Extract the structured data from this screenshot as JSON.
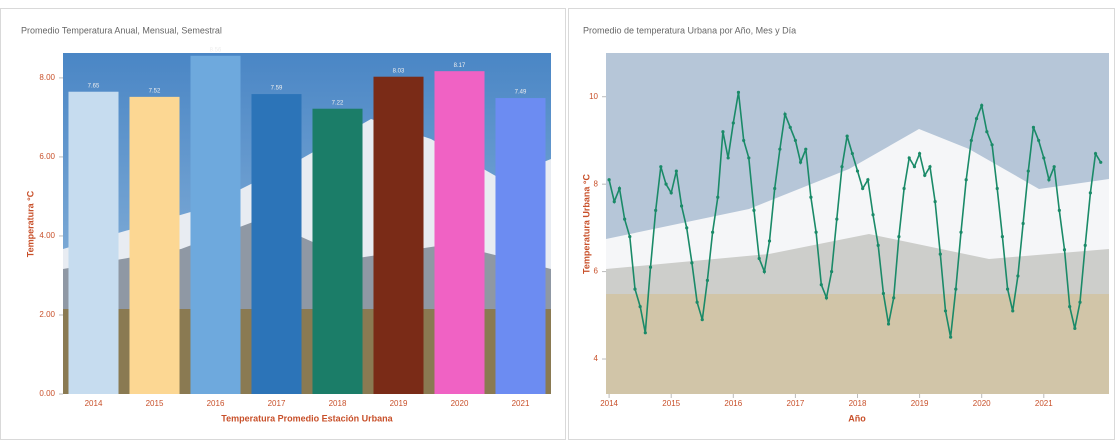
{
  "chart_data": [
    {
      "type": "bar",
      "title": "Promedio Temperatura Anual, Mensual, Semestral",
      "x_label": "Temperatura Promedio Estación Urbana",
      "y_label": "Temperatura °C",
      "categories": [
        "2014",
        "2015",
        "2016",
        "2017",
        "2018",
        "2019",
        "2020",
        "2021"
      ],
      "values": [
        7.65,
        7.52,
        8.56,
        7.59,
        7.22,
        8.03,
        8.17,
        7.49
      ],
      "colors": [
        "#c6dcef",
        "#fcd793",
        "#6ea9dd",
        "#2c74b8",
        "#1b7d68",
        "#7a2b17",
        "#f062c4",
        "#6c8cf2"
      ],
      "ylim": [
        0,
        8.63
      ],
      "yticks": [
        {
          "value": 0,
          "label": "0.00"
        },
        {
          "value": 2,
          "label": "2.00"
        },
        {
          "value": 4,
          "label": "4.00"
        },
        {
          "value": 6,
          "label": "6.00"
        },
        {
          "value": 8,
          "label": "8.00"
        }
      ]
    },
    {
      "type": "line",
      "title": "Promedio de temperatura Urbana por Año, Mes y Día",
      "x_label": "Año",
      "y_label": "Temperatura Urbana °C",
      "color": "#1a8a68",
      "x": [
        2014.0,
        2014.083,
        2014.167,
        2014.25,
        2014.333,
        2014.417,
        2014.5,
        2014.583,
        2014.667,
        2014.75,
        2014.833,
        2014.917,
        2015.0,
        2015.083,
        2015.167,
        2015.25,
        2015.333,
        2015.417,
        2015.5,
        2015.583,
        2015.667,
        2015.75,
        2015.833,
        2015.917,
        2016.0,
        2016.083,
        2016.167,
        2016.25,
        2016.333,
        2016.417,
        2016.5,
        2016.583,
        2016.667,
        2016.75,
        2016.833,
        2016.917,
        2017.0,
        2017.083,
        2017.167,
        2017.25,
        2017.333,
        2017.417,
        2017.5,
        2017.583,
        2017.667,
        2017.75,
        2017.833,
        2017.917,
        2018.0,
        2018.083,
        2018.167,
        2018.25,
        2018.333,
        2018.417,
        2018.5,
        2018.583,
        2018.667,
        2018.75,
        2018.833,
        2018.917,
        2019.0,
        2019.083,
        2019.167,
        2019.25,
        2019.333,
        2019.417,
        2019.5,
        2019.583,
        2019.667,
        2019.75,
        2019.833,
        2019.917,
        2020.0,
        2020.083,
        2020.167,
        2020.25,
        2020.333,
        2020.417,
        2020.5,
        2020.583,
        2020.667,
        2020.75,
        2020.833,
        2020.917,
        2021.0,
        2021.083,
        2021.167,
        2021.25,
        2021.333,
        2021.417,
        2021.5,
        2021.583,
        2021.667,
        2021.75,
        2021.833,
        2021.917
      ],
      "values": [
        8.1,
        7.6,
        7.9,
        7.2,
        6.8,
        5.6,
        5.2,
        4.6,
        6.1,
        7.4,
        8.4,
        8.0,
        7.8,
        8.3,
        7.5,
        7.0,
        6.2,
        5.3,
        4.9,
        5.8,
        6.9,
        7.7,
        9.2,
        8.6,
        9.4,
        10.1,
        9.0,
        8.6,
        7.4,
        6.3,
        6.0,
        6.7,
        7.9,
        8.8,
        9.6,
        9.3,
        9.0,
        8.5,
        8.8,
        7.7,
        6.9,
        5.7,
        5.4,
        6.0,
        7.2,
        8.4,
        9.1,
        8.7,
        8.3,
        7.9,
        8.1,
        7.3,
        6.6,
        5.5,
        4.8,
        5.4,
        6.8,
        7.9,
        8.6,
        8.4,
        8.7,
        8.2,
        8.4,
        7.6,
        6.4,
        5.1,
        4.5,
        5.6,
        6.9,
        8.1,
        9.0,
        9.5,
        9.8,
        9.2,
        8.9,
        7.9,
        6.8,
        5.6,
        5.1,
        5.9,
        7.1,
        8.3,
        9.3,
        9.0,
        8.6,
        8.1,
        8.4,
        7.4,
        6.5,
        5.2,
        4.7,
        5.3,
        6.6,
        7.8,
        8.7,
        8.5
      ],
      "xlim": [
        2013.95,
        2022.05
      ],
      "xticks": [
        2014,
        2015,
        2016,
        2017,
        2018,
        2019,
        2020,
        2021
      ],
      "ylim": [
        3.2,
        11.0
      ],
      "yticks": [
        4,
        6,
        8,
        10
      ]
    }
  ]
}
